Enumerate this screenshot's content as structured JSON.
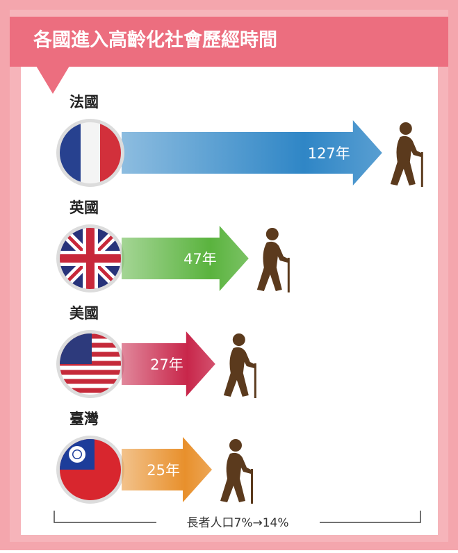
{
  "chart_data": {
    "type": "bar",
    "title": "各國進入高齡化社會歷經時間",
    "categories": [
      "法國",
      "英國",
      "美國",
      "臺灣"
    ],
    "values": [
      127,
      47,
      27,
      25
    ],
    "value_labels": [
      "127年",
      "47年",
      "27年",
      "25年"
    ],
    "colors": [
      "#2f86c6",
      "#5ab33e",
      "#c8264a",
      "#e8902c"
    ],
    "annotation": "長者人口7%→14%"
  }
}
